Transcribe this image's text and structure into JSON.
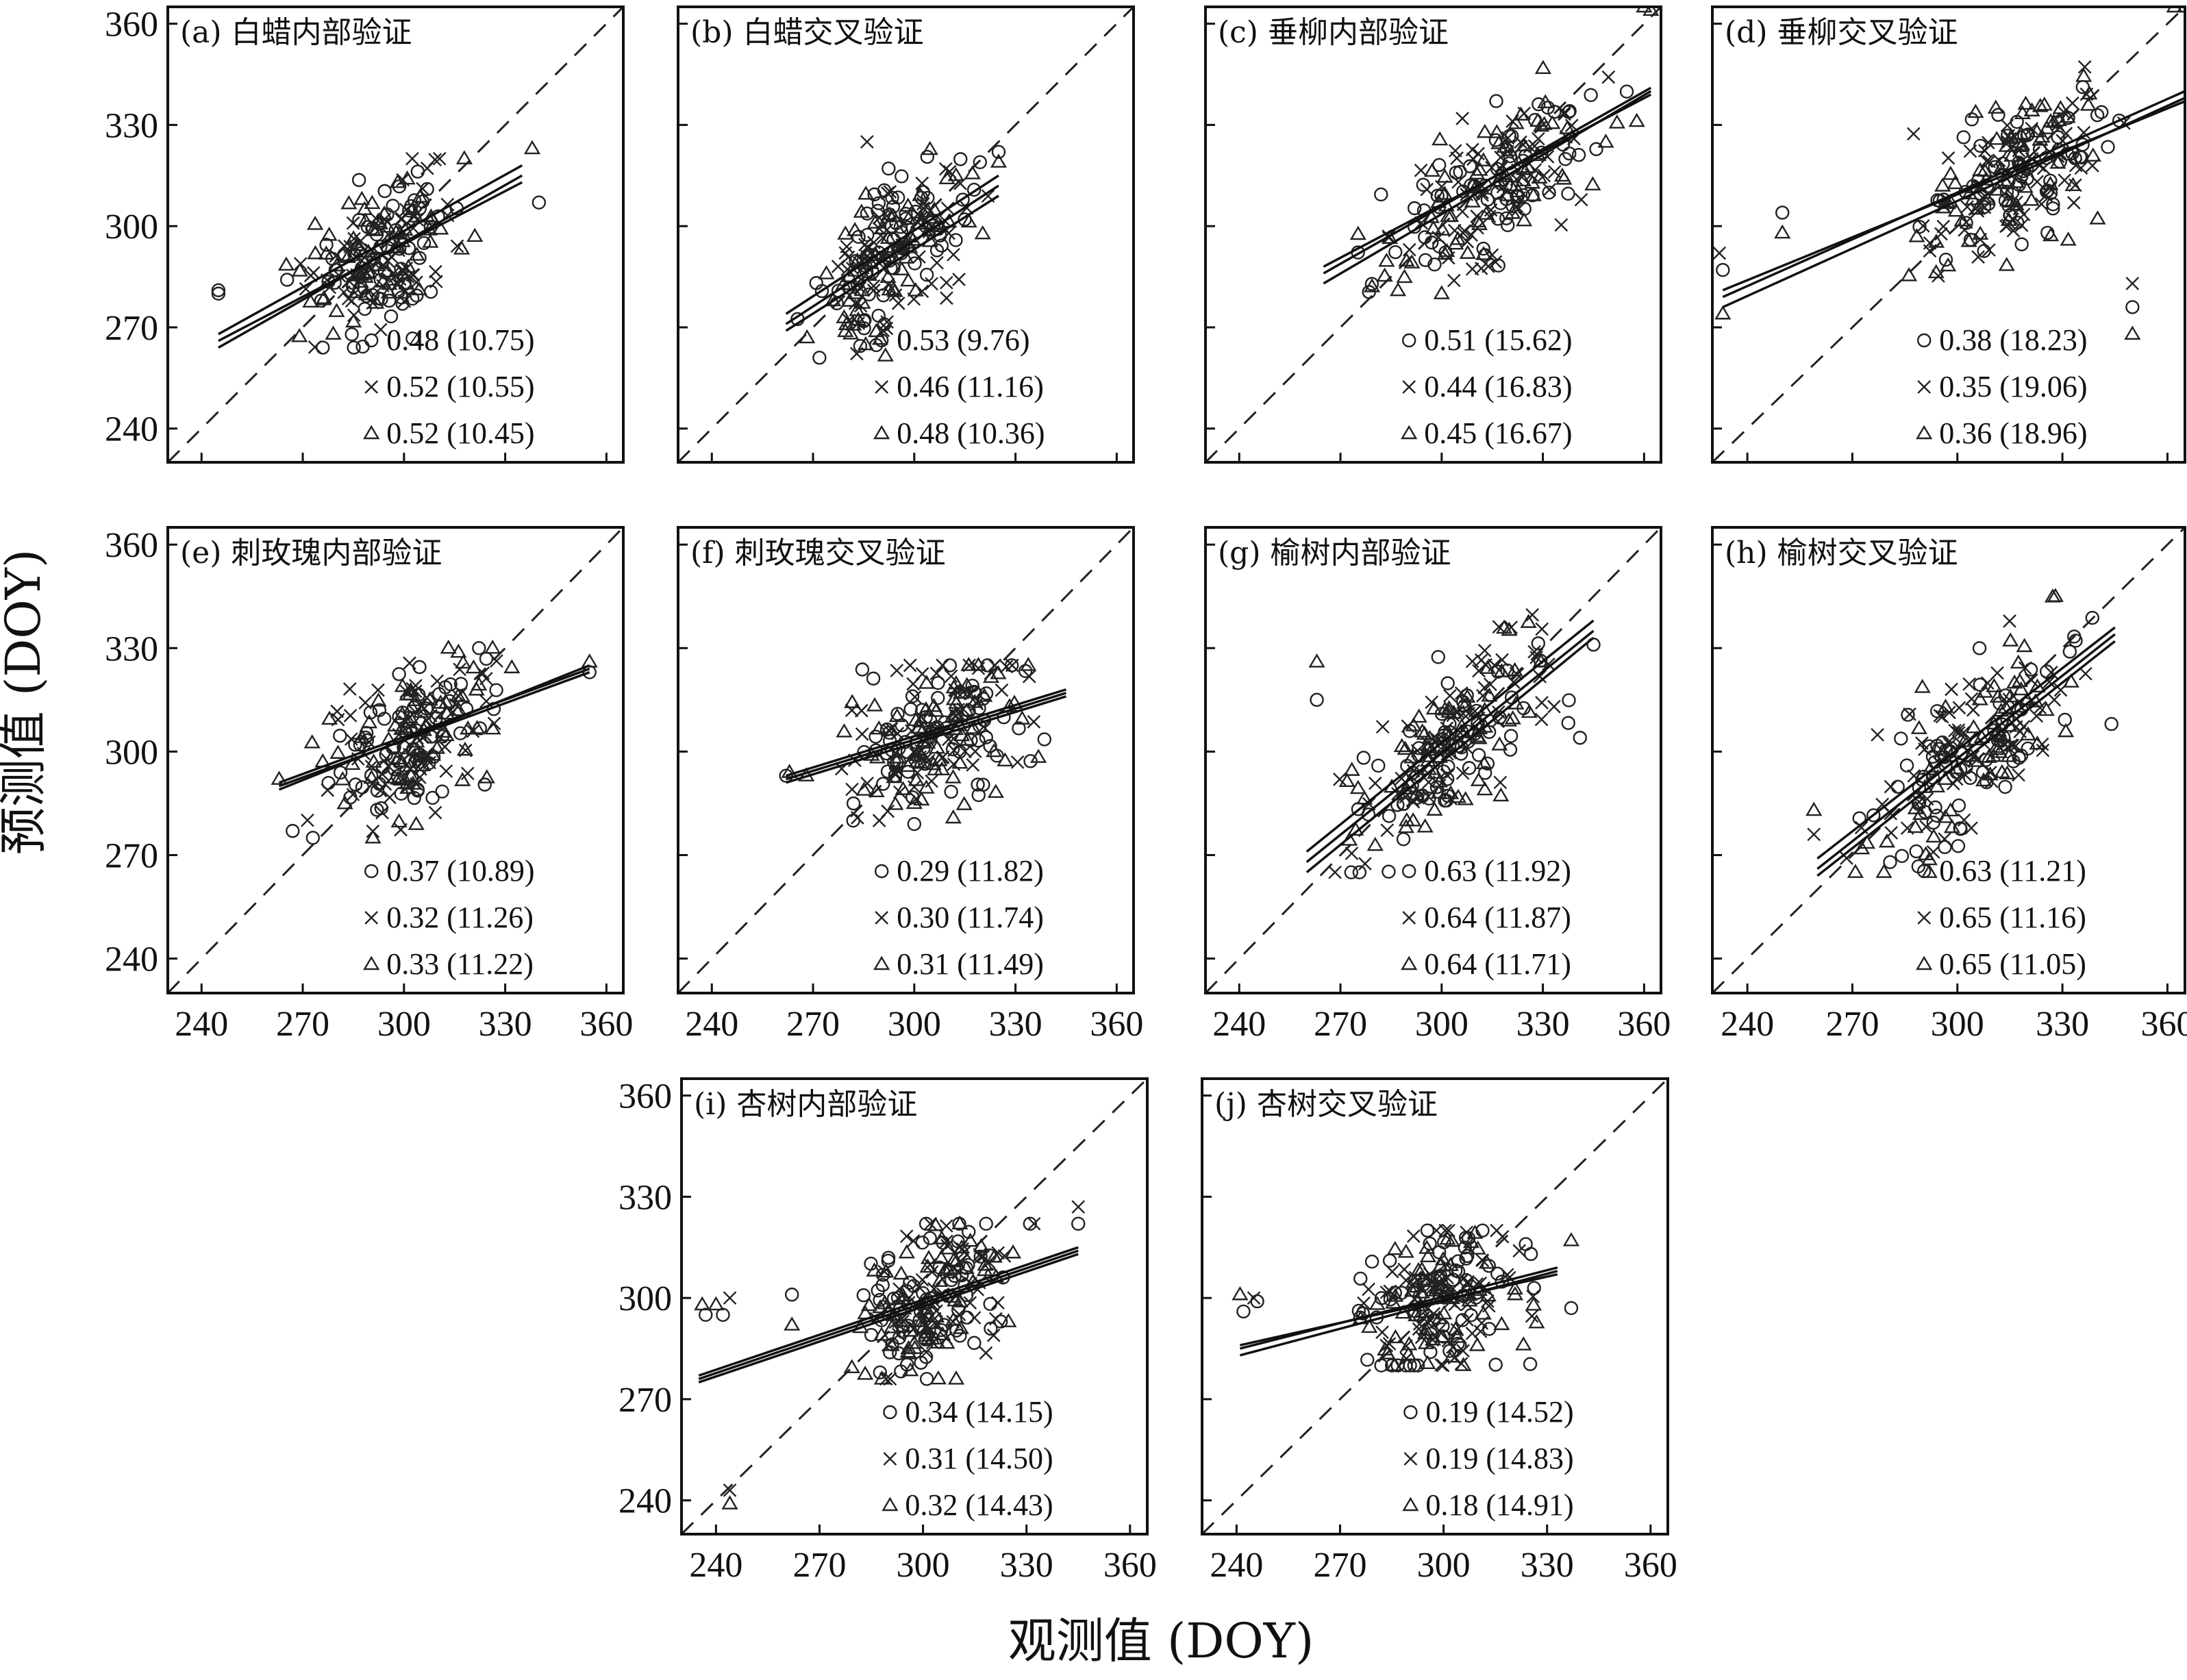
{
  "figure": {
    "ylabel": "预测值 (DOY)",
    "xlabel": "观测值 (DOY)"
  },
  "legend_markers": [
    "circle",
    "x",
    "triangle"
  ],
  "chart_data": [
    {
      "type": "scatter",
      "panel": "a",
      "title": "(a) 白蜡内部验证",
      "xlim": [
        230,
        365
      ],
      "ylim": [
        230,
        365
      ],
      "ticks": [
        240,
        270,
        300,
        330,
        360
      ],
      "stats": [
        "0.48 (10.75)",
        "0.52 (10.55)",
        "0.52 (10.45)"
      ],
      "cloud": {
        "xmin": 262,
        "xmax": 322,
        "ymin": 264,
        "ymax": 320
      },
      "fits": [
        [
          245,
          266,
          335,
          313
        ],
        [
          245,
          268,
          335,
          318
        ],
        [
          245,
          264,
          335,
          315
        ]
      ],
      "extra_points": [
        [
          245,
          280,
          "o"
        ],
        [
          245,
          281,
          "o"
        ],
        [
          340,
          307,
          "o"
        ],
        [
          338,
          323,
          "t"
        ],
        [
          321,
          297,
          "t"
        ]
      ]
    },
    {
      "type": "scatter",
      "panel": "b",
      "title": "(b) 白蜡交叉验证",
      "xlim": [
        230,
        365
      ],
      "ylim": [
        230,
        365
      ],
      "ticks": [
        240,
        270,
        300,
        330,
        360
      ],
      "stats": [
        "0.53 (9.76)",
        "0.46 (11.16)",
        "0.48 (10.36)"
      ],
      "cloud": {
        "xmin": 262,
        "xmax": 325,
        "ymin": 261,
        "ymax": 325
      },
      "fits": [
        [
          262,
          271,
          325,
          312
        ],
        [
          262,
          274,
          325,
          315
        ],
        [
          262,
          269,
          325,
          309
        ]
      ],
      "extra_points": [
        [
          325,
          322,
          "o"
        ],
        [
          325,
          319,
          "t"
        ],
        [
          286,
          325,
          "x"
        ]
      ]
    },
    {
      "type": "scatter",
      "panel": "c",
      "title": "(c) 垂柳内部验证",
      "xlim": [
        230,
        365
      ],
      "ylim": [
        230,
        365
      ],
      "ticks": [
        240,
        270,
        300,
        330,
        360
      ],
      "stats": [
        "0.51 (15.62)",
        "0.44 (16.83)",
        "0.45 (16.67)"
      ],
      "cloud": {
        "xmin": 265,
        "xmax": 362,
        "ymin": 275,
        "ymax": 365
      },
      "fits": [
        [
          265,
          283,
          362,
          340
        ],
        [
          265,
          286,
          362,
          341
        ],
        [
          265,
          288,
          362,
          339
        ]
      ],
      "extra_points": [
        [
          360,
          365,
          "t"
        ],
        [
          362,
          364,
          "t"
        ],
        [
          300,
          280,
          "t"
        ]
      ]
    },
    {
      "type": "scatter",
      "panel": "d",
      "title": "(d) 垂柳交叉验证",
      "xlim": [
        230,
        365
      ],
      "ylim": [
        230,
        365
      ],
      "ticks": [
        240,
        270,
        300,
        330,
        360
      ],
      "stats": [
        "0.38 (18.23)",
        "0.35 (19.06)",
        "0.36 (18.96)"
      ],
      "cloud": {
        "xmin": 275,
        "xmax": 362,
        "ymin": 275,
        "ymax": 362
      },
      "fits": [
        [
          233,
          276,
          365,
          338
        ],
        [
          233,
          279,
          365,
          340
        ],
        [
          233,
          281,
          365,
          337
        ]
      ],
      "extra_points": [
        [
          232,
          292,
          "x"
        ],
        [
          233,
          287,
          "o"
        ],
        [
          233,
          274,
          "t"
        ],
        [
          250,
          304,
          "o"
        ],
        [
          250,
          298,
          "t"
        ],
        [
          350,
          276,
          "o"
        ],
        [
          350,
          268,
          "t"
        ],
        [
          350,
          283,
          "x"
        ],
        [
          362,
          365,
          "t"
        ],
        [
          365,
          365,
          "t"
        ]
      ]
    },
    {
      "type": "scatter",
      "panel": "e",
      "title": "(e) 刺玫瑰内部验证",
      "xlim": [
        230,
        365
      ],
      "ylim": [
        230,
        365
      ],
      "ticks": [
        240,
        270,
        300,
        330,
        360
      ],
      "stats": [
        "0.37 (10.89)",
        "0.32 (11.26)",
        "0.33 (11.22)"
      ],
      "cloud": {
        "xmin": 266,
        "xmax": 340,
        "ymin": 275,
        "ymax": 330
      },
      "fits": [
        [
          263,
          290,
          355,
          323
        ],
        [
          263,
          291,
          355,
          324
        ],
        [
          263,
          289,
          355,
          325
        ]
      ],
      "extra_points": [
        [
          355,
          323,
          "o"
        ],
        [
          355,
          326,
          "t"
        ],
        [
          263,
          292,
          "t"
        ],
        [
          267,
          277,
          "o"
        ],
        [
          273,
          275,
          "o"
        ]
      ]
    },
    {
      "type": "scatter",
      "panel": "f",
      "title": "(f) 刺玫瑰交叉验证",
      "xlim": [
        230,
        365
      ],
      "ylim": [
        230,
        365
      ],
      "ticks": [
        240,
        270,
        300,
        330,
        360
      ],
      "stats": [
        "0.29 (11.82)",
        "0.30 (11.74)",
        "0.31 (11.49)"
      ],
      "cloud": {
        "xmin": 270,
        "xmax": 345,
        "ymin": 280,
        "ymax": 325
      },
      "fits": [
        [
          262,
          292,
          345,
          317
        ],
        [
          262,
          293,
          345,
          318
        ],
        [
          262,
          291,
          345,
          316
        ]
      ],
      "extra_points": [
        [
          262,
          293,
          "o"
        ],
        [
          263,
          294,
          "t"
        ],
        [
          268,
          293,
          "t"
        ],
        [
          300,
          279,
          "o"
        ],
        [
          300,
          285,
          "t"
        ]
      ]
    },
    {
      "type": "scatter",
      "panel": "g",
      "title": "(g) 榆树内部验证",
      "xlim": [
        230,
        365
      ],
      "ylim": [
        230,
        365
      ],
      "ticks": [
        240,
        270,
        300,
        330,
        360
      ],
      "stats": [
        "0.63 (11.92)",
        "0.64 (11.87)",
        "0.64 (11.71)"
      ],
      "cloud": {
        "xmin": 260,
        "xmax": 345,
        "ymin": 265,
        "ymax": 345
      },
      "fits": [
        [
          260,
          268,
          345,
          335
        ],
        [
          260,
          271,
          345,
          338
        ],
        [
          260,
          265,
          345,
          333
        ]
      ],
      "extra_points": [
        [
          263,
          326,
          "t"
        ],
        [
          263,
          315,
          "o"
        ],
        [
          341,
          304,
          "o"
        ],
        [
          345,
          331,
          "o"
        ]
      ]
    },
    {
      "type": "scatter",
      "panel": "h",
      "title": "(h) 榆树交叉验证",
      "xlim": [
        230,
        365
      ],
      "ylim": [
        230,
        365
      ],
      "ticks": [
        240,
        270,
        300,
        330,
        360
      ],
      "stats": [
        "0.63 (11.21)",
        "0.65 (11.16)",
        "0.65 (11.05)"
      ],
      "cloud": {
        "xmin": 262,
        "xmax": 345,
        "ymin": 265,
        "ymax": 345
      },
      "fits": [
        [
          260,
          266,
          345,
          334
        ],
        [
          260,
          269,
          345,
          336
        ],
        [
          260,
          264,
          345,
          332
        ]
      ],
      "extra_points": [
        [
          259,
          283,
          "t"
        ],
        [
          259,
          276,
          "x"
        ],
        [
          344,
          308,
          "o"
        ],
        [
          328,
          345,
          "t"
        ]
      ]
    },
    {
      "type": "scatter",
      "panel": "i",
      "title": "(i) 杏树内部验证",
      "xlim": [
        230,
        365
      ],
      "ylim": [
        230,
        365
      ],
      "ticks": [
        240,
        270,
        300,
        330,
        360
      ],
      "stats": [
        "0.34 (14.15)",
        "0.31 (14.50)",
        "0.32 (14.43)"
      ],
      "cloud": {
        "xmin": 270,
        "xmax": 335,
        "ymin": 276,
        "ymax": 322
      },
      "fits": [
        [
          235,
          276,
          345,
          314
        ],
        [
          235,
          277,
          345,
          315
        ],
        [
          235,
          275,
          345,
          313
        ]
      ],
      "extra_points": [
        [
          236,
          298,
          "t"
        ],
        [
          237,
          295,
          "o"
        ],
        [
          240,
          298,
          "t"
        ],
        [
          242,
          295,
          "o"
        ],
        [
          244,
          300,
          "x"
        ],
        [
          244,
          243,
          "x"
        ],
        [
          244,
          239,
          "t"
        ],
        [
          345,
          327,
          "x"
        ],
        [
          345,
          322,
          "o"
        ],
        [
          262,
          301,
          "o"
        ],
        [
          262,
          292,
          "t"
        ]
      ]
    },
    {
      "type": "scatter",
      "panel": "j",
      "title": "(j) 杏树交叉验证",
      "xlim": [
        230,
        365
      ],
      "ylim": [
        230,
        365
      ],
      "ticks": [
        240,
        270,
        300,
        330,
        360
      ],
      "stats": [
        "0.19 (14.52)",
        "0.19 (14.83)",
        "0.18 (14.91)"
      ],
      "cloud": {
        "xmin": 265,
        "xmax": 335,
        "ymin": 280,
        "ymax": 320
      },
      "fits": [
        [
          241,
          283,
          333,
          308
        ],
        [
          241,
          285,
          333,
          309
        ],
        [
          241,
          286,
          333,
          307
        ]
      ],
      "extra_points": [
        [
          241,
          301,
          "t"
        ],
        [
          242,
          296,
          "o"
        ],
        [
          245,
          300,
          "x"
        ],
        [
          246,
          299,
          "o"
        ],
        [
          337,
          297,
          "o"
        ],
        [
          337,
          317,
          "t"
        ]
      ]
    }
  ]
}
